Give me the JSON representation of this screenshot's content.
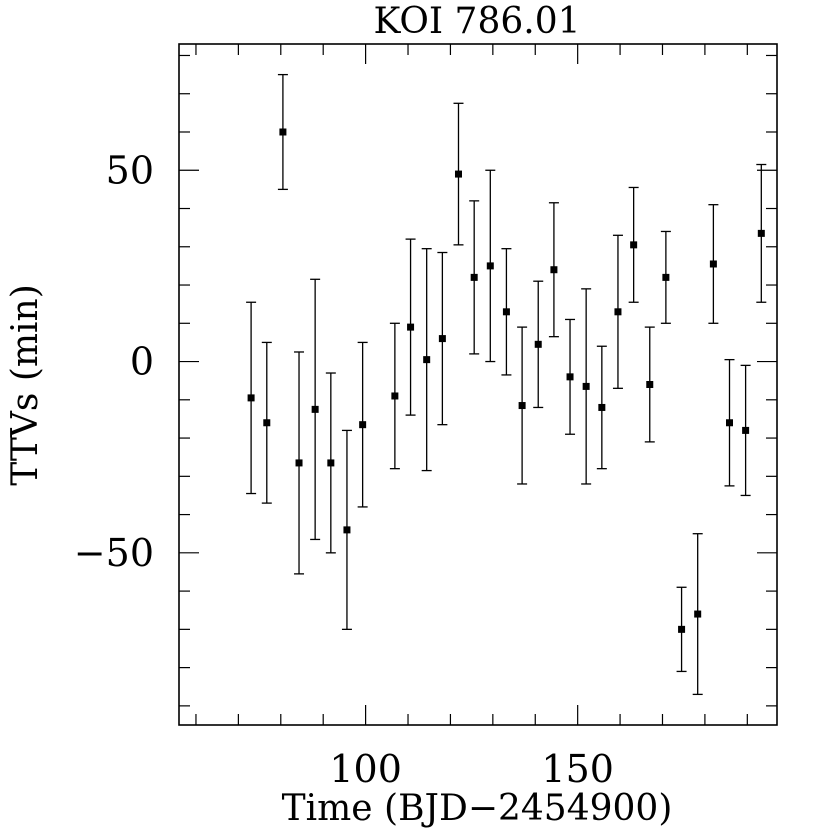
{
  "chart_data": {
    "type": "scatter",
    "title": "KOI 786.01",
    "xlabel": "Time (BJD−2454900)",
    "ylabel": "TTVs (min)",
    "xlim": [
      56,
      197
    ],
    "ylim": [
      -95,
      83
    ],
    "x_ticks": [
      {
        "value": 100,
        "label": "100"
      },
      {
        "value": 150,
        "label": "150"
      }
    ],
    "y_ticks": [
      {
        "value": 50,
        "label": "50"
      },
      {
        "value": 0,
        "label": "0"
      },
      {
        "value": -50,
        "label": "−50"
      }
    ],
    "grid": false,
    "series": [
      {
        "marker": "square",
        "error_bars": true,
        "points": [
          {
            "x": 73.0,
            "y": -9.5,
            "err": 25.0
          },
          {
            "x": 76.7,
            "y": -16.0,
            "err": 21.0
          },
          {
            "x": 80.5,
            "y": 60.0,
            "err": 15.0
          },
          {
            "x": 84.3,
            "y": -26.5,
            "err": 29.0
          },
          {
            "x": 88.1,
            "y": -12.5,
            "err": 34.0
          },
          {
            "x": 91.8,
            "y": -26.5,
            "err": 23.5
          },
          {
            "x": 95.6,
            "y": -44.0,
            "err": 26.0
          },
          {
            "x": 99.3,
            "y": -16.5,
            "err": 21.5
          },
          {
            "x": 106.9,
            "y": -9.0,
            "err": 19.0
          },
          {
            "x": 110.6,
            "y": 9.0,
            "err": 23.0
          },
          {
            "x": 114.4,
            "y": 0.5,
            "err": 29.0
          },
          {
            "x": 118.1,
            "y": 6.0,
            "err": 22.5
          },
          {
            "x": 121.9,
            "y": 49.0,
            "err": 18.5
          },
          {
            "x": 125.6,
            "y": 22.0,
            "err": 20.0
          },
          {
            "x": 129.4,
            "y": 25.0,
            "err": 25.0
          },
          {
            "x": 133.2,
            "y": 13.0,
            "err": 16.5
          },
          {
            "x": 136.9,
            "y": -11.5,
            "err": 20.5
          },
          {
            "x": 140.7,
            "y": 4.5,
            "err": 16.5
          },
          {
            "x": 144.4,
            "y": 24.0,
            "err": 17.5
          },
          {
            "x": 148.2,
            "y": -4.0,
            "err": 15.0
          },
          {
            "x": 152.0,
            "y": -6.5,
            "err": 25.5
          },
          {
            "x": 155.7,
            "y": -12.0,
            "err": 16.0
          },
          {
            "x": 159.5,
            "y": 13.0,
            "err": 20.0
          },
          {
            "x": 163.2,
            "y": 30.5,
            "err": 15.0
          },
          {
            "x": 167.0,
            "y": -6.0,
            "err": 15.0
          },
          {
            "x": 170.8,
            "y": 22.0,
            "err": 12.0
          },
          {
            "x": 174.5,
            "y": -70.0,
            "err": 11.0
          },
          {
            "x": 178.3,
            "y": -66.0,
            "err": 21.0
          },
          {
            "x": 182.0,
            "y": 25.5,
            "err": 15.5
          },
          {
            "x": 185.8,
            "y": -16.0,
            "err": 16.5
          },
          {
            "x": 189.6,
            "y": -18.0,
            "err": 17.0
          },
          {
            "x": 193.3,
            "y": 33.5,
            "err": 18.0
          }
        ]
      }
    ]
  }
}
